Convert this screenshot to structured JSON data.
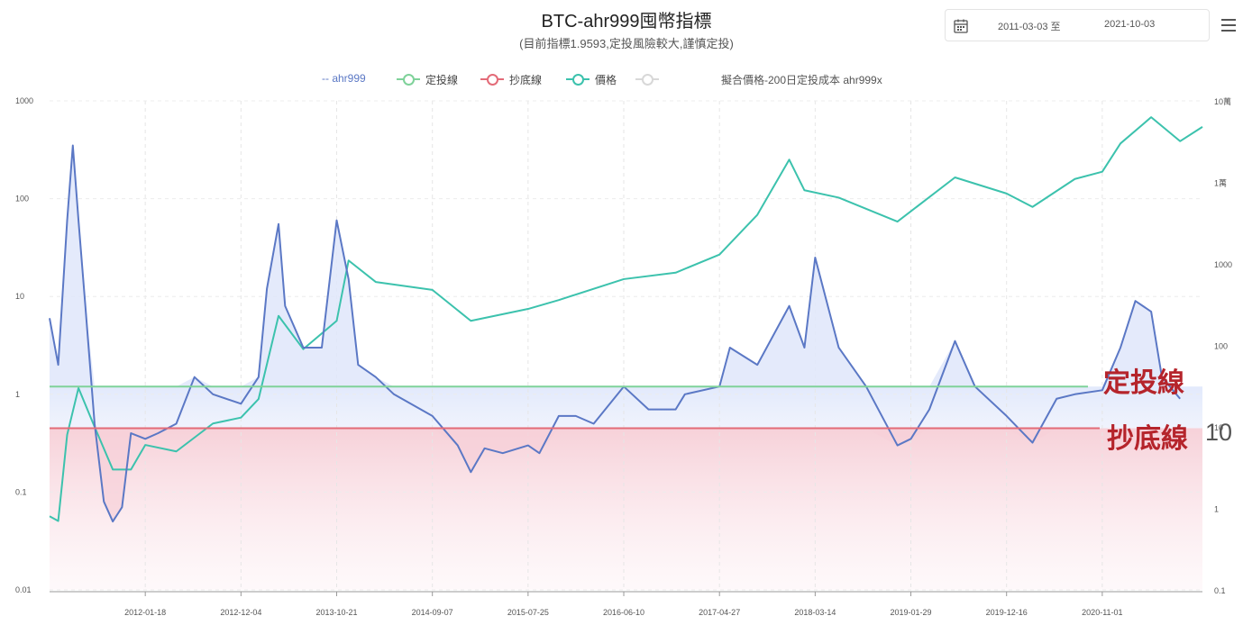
{
  "header": {
    "title": "BTC-ahr999囤幣指標",
    "subtitle": "(目前指標1.9593,定投風險較大,謹慎定投)"
  },
  "date_range": {
    "start": "2011-03-03 至",
    "end": "2021-10-03"
  },
  "legend": [
    {
      "label": "-- ahr999",
      "color": "#5b78c5"
    },
    {
      "label": "定投線",
      "color": "#7fd29a"
    },
    {
      "label": "抄底線",
      "color": "#e36b78"
    },
    {
      "label": "價格",
      "color": "#3cc2ad"
    },
    {
      "label": "",
      "color": "#d8d8d8"
    },
    {
      "label": "擬合價格-200日定投成本 ahr999x",
      "color": "#999999"
    }
  ],
  "annotations": {
    "dingtou": "定投線",
    "chaodi": "抄底線",
    "ten": "10"
  },
  "colors": {
    "ahr999": "#5b78c5",
    "dingtou": "#7fd29a",
    "chaodi": "#e36b78",
    "price": "#3cc2ad"
  },
  "chart_data": {
    "type": "line",
    "x_ticks": [
      "2012-01-18",
      "2012-12-04",
      "2013-10-21",
      "2014-09-07",
      "2015-07-25",
      "2016-06-10",
      "2017-04-27",
      "2018-03-14",
      "2019-01-29",
      "2019-12-16",
      "2020-11-01"
    ],
    "y_left_ticks": [
      "1000",
      "100",
      "10",
      "1",
      "0.1",
      "0.01"
    ],
    "y_right_ticks": [
      "10萬",
      "1萬",
      "1000",
      "100",
      "10",
      "1",
      "0.1"
    ],
    "y_left_scale": "log",
    "y_left_range": [
      0.01,
      1000
    ],
    "y_right_scale": "log",
    "y_right_range": [
      0.1,
      100000
    ],
    "reference_lines": [
      {
        "name": "定投線",
        "value": 1.2
      },
      {
        "name": "抄底線",
        "value": 0.45
      }
    ],
    "series": [
      {
        "name": "ahr999",
        "x": [
          "2011-03-03",
          "2011-04-01",
          "2011-05-01",
          "2011-05-20",
          "2011-06-08",
          "2011-07-01",
          "2011-08-01",
          "2011-09-01",
          "2011-10-01",
          "2011-11-01",
          "2011-12-01",
          "2012-01-18",
          "2012-03-01",
          "2012-05-01",
          "2012-07-01",
          "2012-09-01",
          "2012-12-04",
          "2013-02-01",
          "2013-03-01",
          "2013-04-09",
          "2013-05-01",
          "2013-07-01",
          "2013-09-01",
          "2013-10-21",
          "2013-11-30",
          "2014-01-01",
          "2014-03-01",
          "2014-05-01",
          "2014-09-07",
          "2014-12-01",
          "2015-01-14",
          "2015-03-01",
          "2015-05-01",
          "2015-07-25",
          "2015-09-01",
          "2015-11-05",
          "2016-01-01",
          "2016-03-01",
          "2016-06-10",
          "2016-09-01",
          "2016-12-01",
          "2017-01-01",
          "2017-04-27",
          "2017-06-01",
          "2017-09-01",
          "2017-12-17",
          "2018-02-06",
          "2018-03-14",
          "2018-06-01",
          "2018-09-01",
          "2018-12-15",
          "2019-01-29",
          "2019-04-01",
          "2019-06-26",
          "2019-09-01",
          "2019-12-16",
          "2020-03-12",
          "2020-06-01",
          "2020-08-01",
          "2020-11-01",
          "2021-01-01",
          "2021-02-20",
          "2021-04-14",
          "2021-05-20",
          "2021-07-20"
        ],
        "y": [
          6,
          2,
          60,
          350,
          60,
          8,
          0.5,
          0.08,
          0.05,
          0.07,
          0.4,
          0.35,
          0.4,
          0.5,
          1.5,
          1,
          0.8,
          1.5,
          12,
          55,
          8,
          3,
          3,
          60,
          15,
          2,
          1.5,
          1,
          0.6,
          0.3,
          0.16,
          0.28,
          0.25,
          0.3,
          0.25,
          0.6,
          0.6,
          0.5,
          1.2,
          0.7,
          0.7,
          1.0,
          1.2,
          3,
          2,
          8,
          3,
          25,
          3,
          1.2,
          0.3,
          0.35,
          0.7,
          3.5,
          1.2,
          0.6,
          0.32,
          0.9,
          1.0,
          1.1,
          3,
          9,
          7,
          1.5,
          0.9
        ]
      },
      {
        "name": "價格",
        "x": [
          "2011-03-03",
          "2011-04-01",
          "2011-05-01",
          "2011-06-08",
          "2011-08-01",
          "2011-10-01",
          "2011-12-01",
          "2012-01-18",
          "2012-05-01",
          "2012-09-01",
          "2012-12-04",
          "2013-02-01",
          "2013-04-09",
          "2013-07-01",
          "2013-10-21",
          "2013-11-30",
          "2014-03-01",
          "2014-09-07",
          "2015-01-14",
          "2015-07-25",
          "2015-11-05",
          "2016-06-10",
          "2016-12-01",
          "2017-04-27",
          "2017-09-01",
          "2017-12-17",
          "2018-02-06",
          "2018-06-01",
          "2018-12-15",
          "2019-06-26",
          "2019-12-16",
          "2020-03-12",
          "2020-08-01",
          "2020-11-01",
          "2021-01-01",
          "2021-04-14",
          "2021-07-20",
          "2021-10-03"
        ],
        "y": [
          0.8,
          0.7,
          8,
          30,
          10,
          3,
          3,
          6,
          5,
          11,
          13,
          22,
          230,
          90,
          200,
          1100,
          600,
          480,
          200,
          280,
          360,
          650,
          780,
          1300,
          4000,
          19000,
          8000,
          6500,
          3300,
          11500,
          7300,
          5000,
          11000,
          13500,
          30000,
          63000,
          32000,
          48000
        ]
      }
    ]
  }
}
